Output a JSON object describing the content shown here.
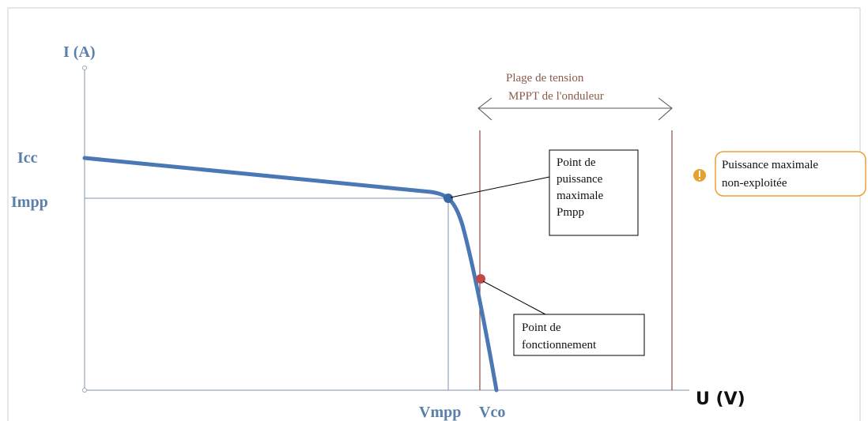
{
  "axes": {
    "y_label": "I (A)",
    "x_label": "U (V)"
  },
  "y_ticks": [
    "Icc",
    "Impp"
  ],
  "x_ticks": [
    "Vmpp",
    "Vco"
  ],
  "range_label": [
    "Plage de tension",
    "MPPT de l'onduleur"
  ],
  "callouts": [
    {
      "lines": [
        "Point de",
        "puissance",
        "maximale",
        "Pmpp"
      ]
    },
    {
      "lines": [
        "Point de",
        "fonctionnement"
      ]
    },
    {
      "lines": [
        "Puissance maximale",
        "non-exploitée"
      ]
    }
  ]
}
